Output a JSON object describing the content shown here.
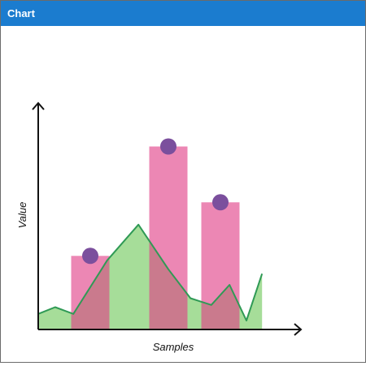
{
  "window": {
    "title": "Chart"
  },
  "colors": {
    "titlebar": "#1b7ccf",
    "bar": "#e03d86",
    "marker": "#7b4f9d",
    "area_fill": "#a6dd99",
    "area_line": "#2f9a55",
    "axis": "#111111"
  },
  "chart_data": {
    "type": "bar",
    "title": "",
    "xlabel": "Samples",
    "ylabel": "Value",
    "ylim": [
      0,
      100
    ],
    "xlim": [
      0,
      10
    ],
    "grid": false,
    "legend": "none",
    "series": [
      {
        "kind": "bar",
        "x": [
          2.0,
          5.0,
          7.0
        ],
        "values": [
          33,
          82,
          57
        ],
        "markers": true
      },
      {
        "kind": "area",
        "x": [
          0,
          0.65,
          1.35,
          2.65,
          3.85,
          5.0,
          5.85,
          6.65,
          7.35,
          8.0,
          8.6
        ],
        "values": [
          7,
          10,
          7,
          31,
          47,
          27,
          14,
          11,
          20,
          4,
          25
        ]
      }
    ]
  }
}
